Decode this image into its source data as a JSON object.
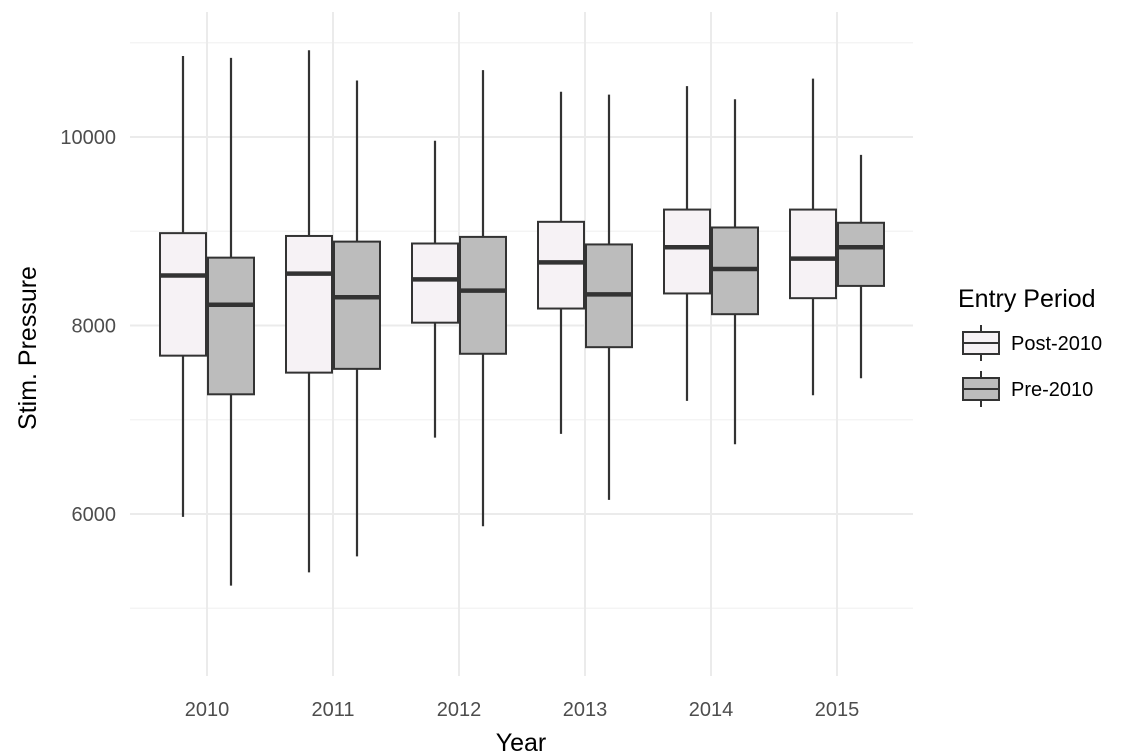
{
  "chart_data": {
    "type": "box",
    "xlabel": "Year",
    "ylabel": "Stim. Pressure",
    "categories": [
      "2010",
      "2011",
      "2012",
      "2013",
      "2014",
      "2015"
    ],
    "y_ticks": [
      "6000",
      "8000",
      "10000"
    ],
    "y_tick_values": [
      6000,
      8000,
      10000
    ],
    "ylim": [
      4300,
      11300
    ],
    "grid": true,
    "legend": {
      "title": "Entry Period",
      "position": "right",
      "items": [
        "Post-2010",
        "Pre-2010"
      ]
    },
    "series": [
      {
        "name": "Post-2010",
        "color": "#f6f2f5",
        "boxes": [
          {
            "min": 5970,
            "q1": 7680,
            "median": 8530,
            "q3": 8980,
            "max": 10860
          },
          {
            "min": 5380,
            "q1": 7500,
            "median": 8550,
            "q3": 8950,
            "max": 10920
          },
          {
            "min": 6810,
            "q1": 8030,
            "median": 8490,
            "q3": 8870,
            "max": 9960
          },
          {
            "min": 6850,
            "q1": 8180,
            "median": 8670,
            "q3": 9100,
            "max": 10480
          },
          {
            "min": 7200,
            "q1": 8340,
            "median": 8830,
            "q3": 9230,
            "max": 10540
          },
          {
            "min": 7260,
            "q1": 8290,
            "median": 8710,
            "q3": 9230,
            "max": 10620
          }
        ]
      },
      {
        "name": "Pre-2010",
        "color": "#bcbcbc",
        "boxes": [
          {
            "min": 5240,
            "q1": 7270,
            "median": 8220,
            "q3": 8720,
            "max": 10840
          },
          {
            "min": 5550,
            "q1": 7540,
            "median": 8300,
            "q3": 8890,
            "max": 10600
          },
          {
            "min": 5870,
            "q1": 7700,
            "median": 8370,
            "q3": 8940,
            "max": 10710
          },
          {
            "min": 6150,
            "q1": 7770,
            "median": 8330,
            "q3": 8860,
            "max": 10450
          },
          {
            "min": 6740,
            "q1": 8120,
            "median": 8600,
            "q3": 9040,
            "max": 10400
          },
          {
            "min": 7440,
            "q1": 8420,
            "median": 8830,
            "q3": 9090,
            "max": 9810
          }
        ]
      }
    ]
  }
}
